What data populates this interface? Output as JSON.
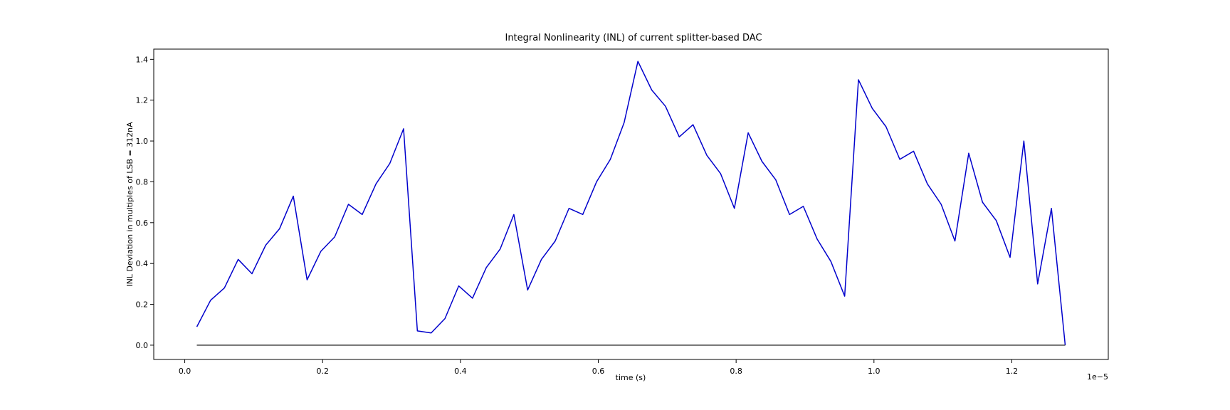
{
  "chart_data": {
    "type": "line",
    "title": "Integral Nonlinearity (INL) of current splitter-based DAC",
    "xlabel": "time (s)",
    "ylabel": "INL Deviation in multiples of LSB = 312nA",
    "x_offset_label": "1e−5",
    "x_scale": 1e-05,
    "xlim": [
      -0.045,
      1.34
    ],
    "ylim": [
      -0.07,
      1.45
    ],
    "xticks": [
      0.0,
      0.2,
      0.4,
      0.6,
      0.8,
      1.0,
      1.2
    ],
    "xtick_labels": [
      "0.0",
      "0.2",
      "0.4",
      "0.6",
      "0.8",
      "1.0",
      "1.2"
    ],
    "yticks": [
      0.0,
      0.2,
      0.4,
      0.6,
      0.8,
      1.0,
      1.2,
      1.4
    ],
    "ytick_labels": [
      "0.0",
      "0.2",
      "0.4",
      "0.6",
      "0.8",
      "1.0",
      "1.2",
      "1.4"
    ],
    "grid": false,
    "series": [
      {
        "color": "#0000cc",
        "x": [
          0.0175,
          0.0375,
          0.0575,
          0.0775,
          0.0975,
          0.1175,
          0.1375,
          0.1575,
          0.1775,
          0.1975,
          0.2175,
          0.2375,
          0.2575,
          0.2775,
          0.2975,
          0.3175,
          0.3375,
          0.3575,
          0.3775,
          0.3975,
          0.4175,
          0.4375,
          0.4575,
          0.4775,
          0.4975,
          0.5175,
          0.5375,
          0.5575,
          0.5775,
          0.5975,
          0.6175,
          0.6375,
          0.6575,
          0.6775,
          0.6975,
          0.7175,
          0.7375,
          0.7575,
          0.7775,
          0.7975,
          0.8175,
          0.8375,
          0.8575,
          0.8775,
          0.8975,
          0.9175,
          0.9375,
          0.9575,
          0.9775,
          0.9975,
          1.0175,
          1.0375,
          1.0575,
          1.0775,
          1.0975,
          1.1175,
          1.1375,
          1.1575,
          1.1775,
          1.1975,
          1.2175,
          1.2375,
          1.2575,
          1.2775
        ],
        "y": [
          0.09,
          0.22,
          0.28,
          0.42,
          0.35,
          0.49,
          0.57,
          0.73,
          0.32,
          0.46,
          0.53,
          0.69,
          0.64,
          0.79,
          0.89,
          1.06,
          0.07,
          0.06,
          0.13,
          0.29,
          0.23,
          0.38,
          0.47,
          0.64,
          0.27,
          0.42,
          0.51,
          0.67,
          0.64,
          0.8,
          0.91,
          1.09,
          1.39,
          1.25,
          1.17,
          1.02,
          1.08,
          0.93,
          0.84,
          0.67,
          1.04,
          0.9,
          0.81,
          0.64,
          0.68,
          0.52,
          0.41,
          0.24,
          1.3,
          1.16,
          1.07,
          0.91,
          0.95,
          0.79,
          0.69,
          0.51,
          0.94,
          0.7,
          0.61,
          0.43,
          1.0,
          0.3,
          0.67,
          0.0
        ]
      },
      {
        "color": "#000000",
        "x": [
          0.0175,
          1.2775
        ],
        "y": [
          0.0,
          0.0
        ]
      }
    ]
  }
}
